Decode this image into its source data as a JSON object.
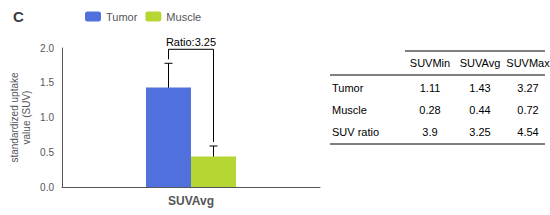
{
  "chart_data": {
    "type": "bar",
    "title": "C",
    "categories": [
      "SUVAvg"
    ],
    "series": [
      {
        "name": "Tumor",
        "values": [
          1.43
        ],
        "errors": [
          0.35
        ]
      },
      {
        "name": "Muscle",
        "values": [
          0.44
        ],
        "errors": [
          0.15
        ]
      }
    ],
    "ylabel": "standardized uptake\nvalue (SUV)",
    "ylim": [
      0,
      2.0
    ],
    "yticks": [
      {
        "value": 0,
        "label": "0.0"
      },
      0.5,
      {
        "value": 1,
        "label": "1.0"
      },
      1.5,
      {
        "value": 2,
        "label": "2.0"
      }
    ],
    "annotation": "Ratio:3.25",
    "grid": false,
    "legend": "top",
    "table": {
      "columns": [
        "SUVMin",
        "SUVAvg",
        "SUVMax"
      ],
      "rows": [
        {
          "label": "Tumor",
          "values": [
            1.11,
            1.43,
            3.27
          ]
        },
        {
          "label": "Muscle",
          "values": [
            0.28,
            0.44,
            0.72
          ]
        },
        {
          "label": "SUV ratio",
          "values": [
            3.9,
            3.25,
            4.54
          ]
        }
      ]
    }
  }
}
